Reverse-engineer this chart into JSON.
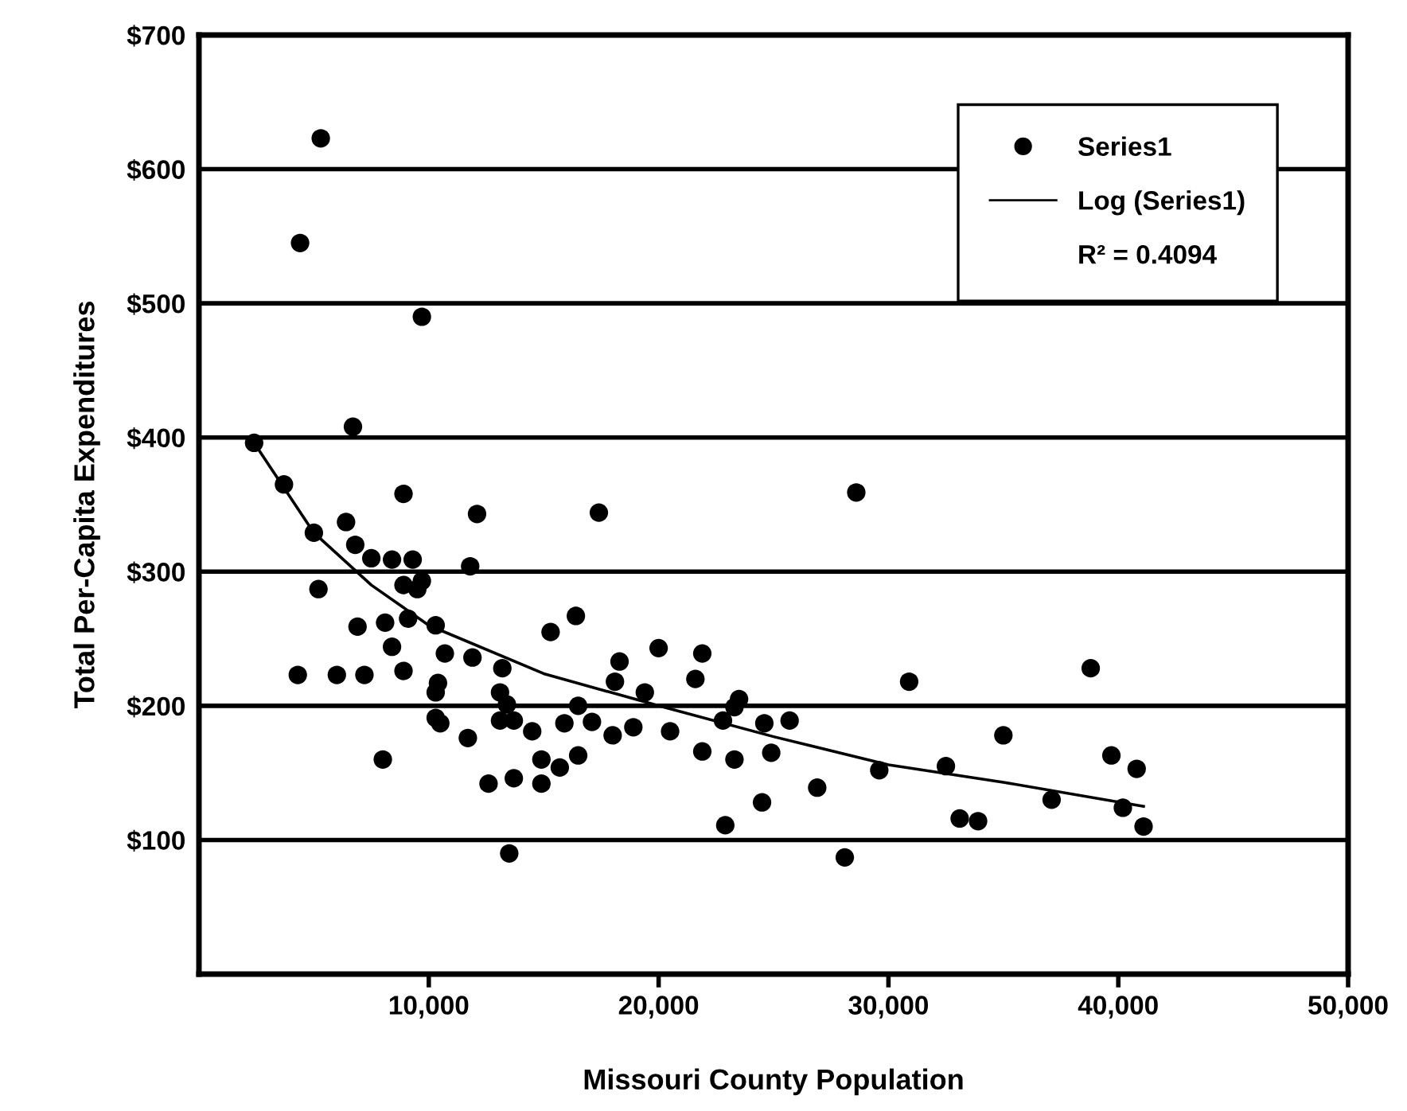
{
  "chart_data": {
    "type": "scatter",
    "xlabel": "Missouri County Population",
    "ylabel": "Total Per-Capita Expenditures",
    "xlim": [
      0,
      50000
    ],
    "ylim": [
      0,
      700
    ],
    "xticks": [
      {
        "value": 10000,
        "label": "10,000"
      },
      {
        "value": 20000,
        "label": "20,000"
      },
      {
        "value": 30000,
        "label": "30,000"
      },
      {
        "value": 40000,
        "label": "40,000"
      },
      {
        "value": 50000,
        "label": "50,000"
      }
    ],
    "yticks": [
      {
        "value": 100,
        "label": "$100"
      },
      {
        "value": 200,
        "label": "$200"
      },
      {
        "value": 300,
        "label": "$300"
      },
      {
        "value": 400,
        "label": "$400"
      },
      {
        "value": 500,
        "label": "$500"
      },
      {
        "value": 600,
        "label": "$600"
      },
      {
        "value": 700,
        "label": "$700"
      }
    ],
    "grid": "y",
    "legend": "top right",
    "marker": "circle",
    "annotations": [
      "R² = 0.4094"
    ],
    "series": [
      {
        "name": "Series1",
        "color": "#000000",
        "x": [
          5300,
          4400,
          9700,
          6700,
          2400,
          3700,
          8900,
          12100,
          5000,
          6400,
          6800,
          7500,
          8400,
          9300,
          11800,
          5200,
          8900,
          9700,
          9500,
          6900,
          8100,
          9100,
          10300,
          8400,
          10700,
          11900,
          13200,
          15300,
          16400,
          4300,
          6000,
          7200,
          8900,
          10400,
          10300,
          13100,
          13400,
          10300,
          10500,
          13100,
          13700,
          11700,
          14500,
          15900,
          16500,
          14900,
          15700,
          16500,
          8000,
          12600,
          13700,
          14900,
          13500,
          17400,
          28600,
          18300,
          20000,
          21900,
          18100,
          21600,
          19400,
          17100,
          18000,
          18900,
          20500,
          22800,
          23500,
          23300,
          24600,
          25700,
          21900,
          23300,
          24900,
          26900,
          24500,
          22900,
          28100,
          29600,
          30900,
          32500,
          33100,
          33900,
          35000,
          37100,
          38800,
          39700,
          40800,
          40200,
          41100
        ],
        "values": [
          623,
          545,
          490,
          408,
          396,
          365,
          358,
          343,
          329,
          337,
          320,
          310,
          309,
          309,
          304,
          287,
          290,
          293,
          287,
          259,
          262,
          265,
          260,
          244,
          239,
          236,
          228,
          255,
          267,
          223,
          223,
          223,
          226,
          217,
          210,
          210,
          201,
          191,
          187,
          189,
          189,
          176,
          181,
          187,
          200,
          160,
          154,
          163,
          160,
          142,
          146,
          142,
          90,
          344,
          359,
          233,
          243,
          239,
          218,
          220,
          210,
          188,
          178,
          184,
          181,
          189,
          205,
          199,
          187,
          189,
          166,
          160,
          165,
          139,
          128,
          111,
          87,
          152,
          218,
          155,
          116,
          114,
          178,
          130,
          228,
          163,
          153,
          124,
          110
        ]
      },
      {
        "name": "Log (Series1)",
        "type": "line",
        "color": "#000000",
        "marker": "none",
        "x": [
          2400,
          5000,
          7500,
          10000,
          15000,
          20000,
          25000,
          30000,
          35000,
          41100
        ],
        "values": [
          396,
          329,
          290,
          260,
          224,
          200,
          177,
          156,
          143,
          125
        ]
      }
    ]
  }
}
